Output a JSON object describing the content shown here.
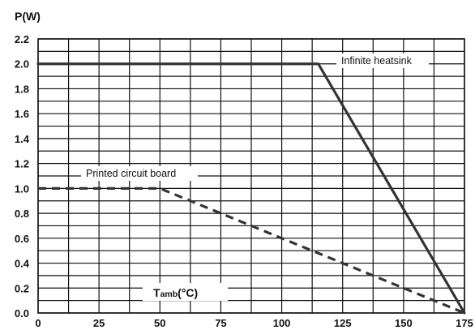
{
  "chart_data": {
    "type": "line",
    "ylabel": "P(W)",
    "xlabel": {
      "main": "T",
      "sub": "amb",
      "unit": "(°C)"
    },
    "xlim": [
      0,
      175
    ],
    "ylim": [
      0,
      2.2
    ],
    "x_ticks": [
      "0",
      "25",
      "50",
      "75",
      "100",
      "125",
      "150",
      "175"
    ],
    "y_ticks": [
      "0.0",
      "0.2",
      "0.4",
      "0.6",
      "0.8",
      "1.0",
      "1.2",
      "1.4",
      "1.6",
      "1.8",
      "2.0",
      "2.2"
    ],
    "grid": true,
    "series": [
      {
        "name": "Infinite heatsink",
        "style": "solid",
        "x": [
          0,
          115,
          175
        ],
        "y": [
          2.0,
          2.0,
          0.0
        ]
      },
      {
        "name": "Printed circuit board",
        "style": "dashed",
        "x": [
          0,
          50,
          175
        ],
        "y": [
          1.0,
          1.0,
          0.0
        ]
      }
    ],
    "colors": {
      "line": "#333333",
      "grid": "#111111"
    }
  }
}
